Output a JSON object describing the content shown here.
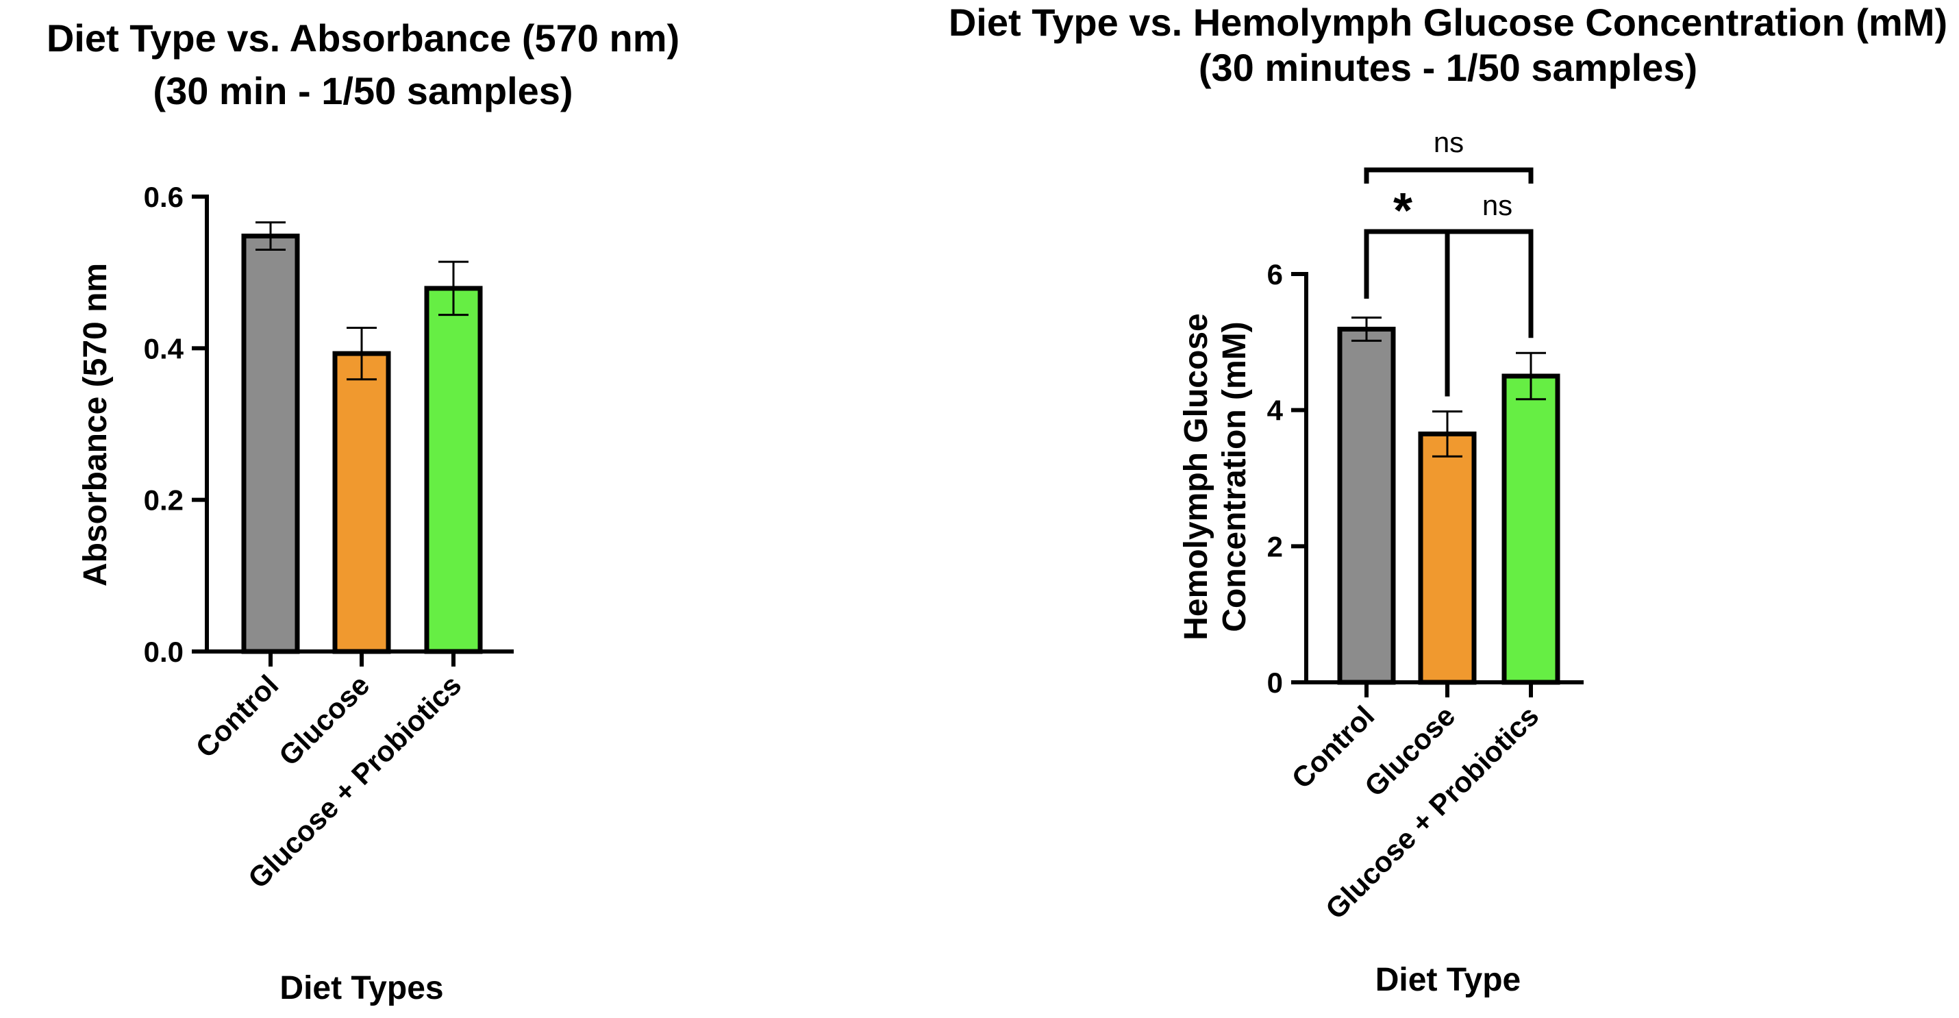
{
  "chart_data": [
    {
      "type": "bar",
      "title": [
        "Diet Type vs. Absorbance (570 nm)",
        "(30 min - 1/50 samples)"
      ],
      "xlabel": "Diet Types",
      "ylabel": "Absorbance (570 nm",
      "ylim": [
        0,
        0.6
      ],
      "yticks": [
        0.0,
        0.2,
        0.4,
        0.6
      ],
      "ytick_labels": [
        "0.0",
        "0.2",
        "0.4",
        "0.6"
      ],
      "categories": [
        "Control",
        "Glucose",
        "Glucose + Probiotics"
      ],
      "values": [
        0.548,
        0.393,
        0.479
      ],
      "errors": [
        0.018,
        0.034,
        0.035
      ],
      "colors": [
        "#8c8c8c",
        "#f0992f",
        "#66ee44"
      ]
    },
    {
      "type": "bar",
      "title": [
        "Diet Type vs. Hemolymph Glucose Concentration (mM)",
        "(30 minutes - 1/50 samples)"
      ],
      "xlabel": "Diet Type",
      "ylabel": [
        "Hemolymph Glucose",
        "Concentration (mM)"
      ],
      "ylim": [
        0,
        6
      ],
      "yticks": [
        0,
        2,
        4,
        6
      ],
      "ytick_labels": [
        "0",
        "2",
        "4",
        "6"
      ],
      "categories": [
        "Control",
        "Glucose",
        "Glucose + Probiotics"
      ],
      "values": [
        5.19,
        3.65,
        4.5
      ],
      "errors": [
        0.17,
        0.33,
        0.34
      ],
      "colors": [
        "#8c8c8c",
        "#f0992f",
        "#66ee44"
      ],
      "significance": [
        {
          "from": 0,
          "to": 1,
          "label": "*"
        },
        {
          "from": 0,
          "to": 2,
          "label": "ns",
          "level": "inner"
        },
        {
          "from": 0,
          "to": 2,
          "label": "ns",
          "level": "outer"
        }
      ]
    }
  ]
}
